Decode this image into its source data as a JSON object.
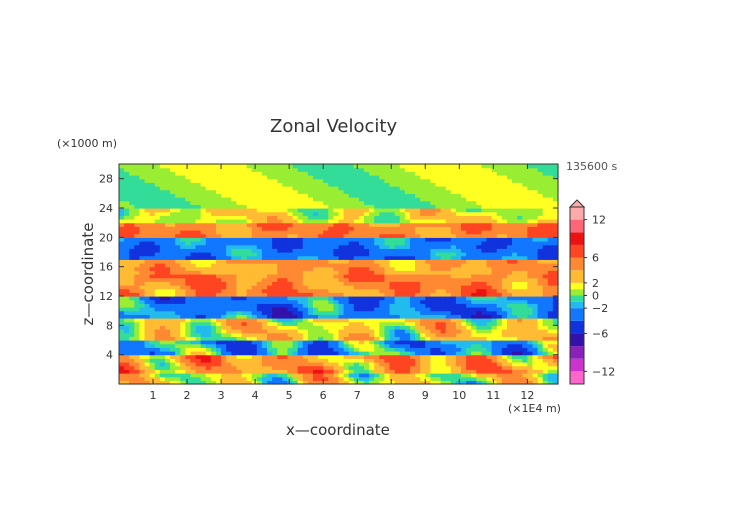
{
  "chart_data": {
    "type": "heatmap",
    "title": "Zonal Velocity",
    "time_label": "135600 s",
    "xlabel": "x—coordinate",
    "ylabel": "z—coordinate",
    "x_unit": "(×1E4 m)",
    "y_unit": "(×1000 m)",
    "xlim": [
      0,
      12.9
    ],
    "ylim": [
      0,
      30
    ],
    "x_ticks": [
      "1",
      "2",
      "3",
      "4",
      "5",
      "6",
      "7",
      "8",
      "9",
      "10",
      "11",
      "12"
    ],
    "y_ticks": [
      "4",
      "8",
      "12",
      "16",
      "20",
      "24",
      "28"
    ],
    "colorbar": {
      "range": [
        -14,
        14
      ],
      "tick_labels": [
        "12",
        "6",
        "2",
        "0",
        "−2",
        "−6",
        "−12"
      ],
      "tick_values": [
        12,
        6,
        2,
        0,
        -2,
        -6,
        -12
      ],
      "levels": [
        {
          "min": -14,
          "max": -12,
          "color": "#ff66cc"
        },
        {
          "min": -12,
          "max": -10,
          "color": "#cc33cc"
        },
        {
          "min": -10,
          "max": -8,
          "color": "#8822bb"
        },
        {
          "min": -8,
          "max": -6,
          "color": "#3311aa"
        },
        {
          "min": -6,
          "max": -4,
          "color": "#1133dd"
        },
        {
          "min": -4,
          "max": -2,
          "color": "#1177ff"
        },
        {
          "min": -2,
          "max": -1,
          "color": "#22bbee"
        },
        {
          "min": -1,
          "max": 0,
          "color": "#33dd99"
        },
        {
          "min": 0,
          "max": 1,
          "color": "#99ee33"
        },
        {
          "min": 1,
          "max": 2,
          "color": "#ffff22"
        },
        {
          "min": 2,
          "max": 4,
          "color": "#ffbb33"
        },
        {
          "min": 4,
          "max": 6,
          "color": "#ff8833"
        },
        {
          "min": 6,
          "max": 8,
          "color": "#ff4422"
        },
        {
          "min": 8,
          "max": 10,
          "color": "#ee1111"
        },
        {
          "min": 10,
          "max": 12,
          "color": "#ff6677"
        },
        {
          "min": 12,
          "max": 14,
          "color": "#ffaaaa"
        }
      ]
    },
    "field_structure": [
      {
        "z_range": [
          26,
          30
        ],
        "dominant_value": 0.5
      },
      {
        "z_range": [
          22,
          26
        ],
        "dominant_value": 1.5
      },
      {
        "z_range": [
          20,
          22
        ],
        "dominant_value": 5
      },
      {
        "z_range": [
          17,
          20
        ],
        "dominant_value": -3
      },
      {
        "z_range": [
          15,
          17
        ],
        "dominant_value": 4
      },
      {
        "z_range": [
          12,
          15
        ],
        "dominant_value": 5
      },
      {
        "z_range": [
          9,
          12
        ],
        "dominant_value": -3
      },
      {
        "z_range": [
          6,
          9
        ],
        "dominant_value": 2
      },
      {
        "z_range": [
          4,
          6
        ],
        "dominant_value": -2
      },
      {
        "z_range": [
          1.5,
          4
        ],
        "dominant_value": 4
      },
      {
        "z_range": [
          0,
          1.5
        ],
        "dominant_value": 1.5
      }
    ]
  }
}
